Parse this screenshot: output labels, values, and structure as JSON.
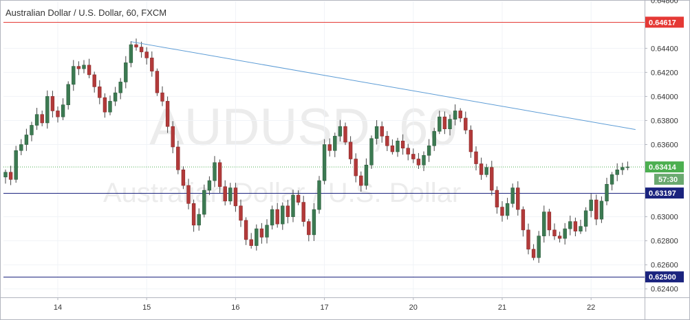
{
  "chart_data": {
    "type": "candlestick",
    "title": "Australian Dollar / U.S. Dollar, 60, FXCM",
    "watermark_symbol": "AUDUSD, 60",
    "watermark_name": "Australian Dollar / U.S. Dollar",
    "ylim": [
      0.6233,
      0.6479
    ],
    "y_ticks": [
      "0.64800",
      "0.64400",
      "0.64200",
      "0.64000",
      "0.63800",
      "0.63600",
      "0.63000",
      "0.62800",
      "0.62600",
      "0.62400"
    ],
    "x_ticks": [
      {
        "label": "14",
        "bar": 10
      },
      {
        "label": "15",
        "bar": 27
      },
      {
        "label": "16",
        "bar": 44
      },
      {
        "label": "17",
        "bar": 61
      },
      {
        "label": "20",
        "bar": 78
      },
      {
        "label": "21",
        "bar": 95
      },
      {
        "label": "22",
        "bar": 112
      }
    ],
    "horizontal_lines": [
      {
        "value": 0.64617,
        "label": "0.64617",
        "color": "#e53935"
      },
      {
        "value": 0.63197,
        "label": "0.63197",
        "color": "#1a237e"
      },
      {
        "value": 0.625,
        "label": "0.62500",
        "color": "#1a237e"
      }
    ],
    "last_price": {
      "value": 0.63414,
      "label": "0.63414",
      "countdown": "57:30",
      "color": "#4caf50"
    },
    "trendline": {
      "from": {
        "bar": 24,
        "value": 0.64455
      },
      "to": {
        "bar": 120.5,
        "value": 0.63725
      },
      "color": "#5b9bd5"
    },
    "colors": {
      "up": "#26a69a",
      "down": "#ef5350",
      "up_body": "#3c7a52",
      "down_body": "#b23a3a",
      "wick": "#444444"
    },
    "closes": [
      0.6337,
      0.6331,
      0.6355,
      0.636,
      0.6368,
      0.6376,
      0.6385,
      0.6378,
      0.64,
      0.6388,
      0.6383,
      0.6393,
      0.641,
      0.6425,
      0.6423,
      0.6426,
      0.6418,
      0.6408,
      0.6399,
      0.6387,
      0.6396,
      0.6403,
      0.6412,
      0.6428,
      0.6443,
      0.6441,
      0.6437,
      0.6432,
      0.6421,
      0.6403,
      0.6396,
      0.6375,
      0.6358,
      0.6339,
      0.6326,
      0.6311,
      0.6293,
      0.6302,
      0.6322,
      0.633,
      0.6345,
      0.6325,
      0.6313,
      0.6324,
      0.6309,
      0.6297,
      0.6281,
      0.6276,
      0.629,
      0.6283,
      0.6293,
      0.6306,
      0.6294,
      0.6309,
      0.63,
      0.6318,
      0.6312,
      0.6296,
      0.6285,
      0.6306,
      0.633,
      0.636,
      0.6355,
      0.6367,
      0.6375,
      0.6362,
      0.6348,
      0.6334,
      0.6326,
      0.6343,
      0.6365,
      0.6375,
      0.6367,
      0.6359,
      0.6354,
      0.6363,
      0.6357,
      0.6352,
      0.6348,
      0.6343,
      0.6351,
      0.6359,
      0.6371,
      0.6383,
      0.6373,
      0.6381,
      0.6388,
      0.6382,
      0.6372,
      0.6354,
      0.6344,
      0.6335,
      0.6341,
      0.6322,
      0.6308,
      0.6301,
      0.6311,
      0.6324,
      0.6306,
      0.6289,
      0.6273,
      0.6266,
      0.6284,
      0.6304,
      0.6289,
      0.6284,
      0.6282,
      0.629,
      0.6296,
      0.6288,
      0.6292,
      0.6305,
      0.6314,
      0.6298,
      0.6313,
      0.6327,
      0.6335,
      0.6339,
      0.6341,
      0.63414
    ]
  }
}
